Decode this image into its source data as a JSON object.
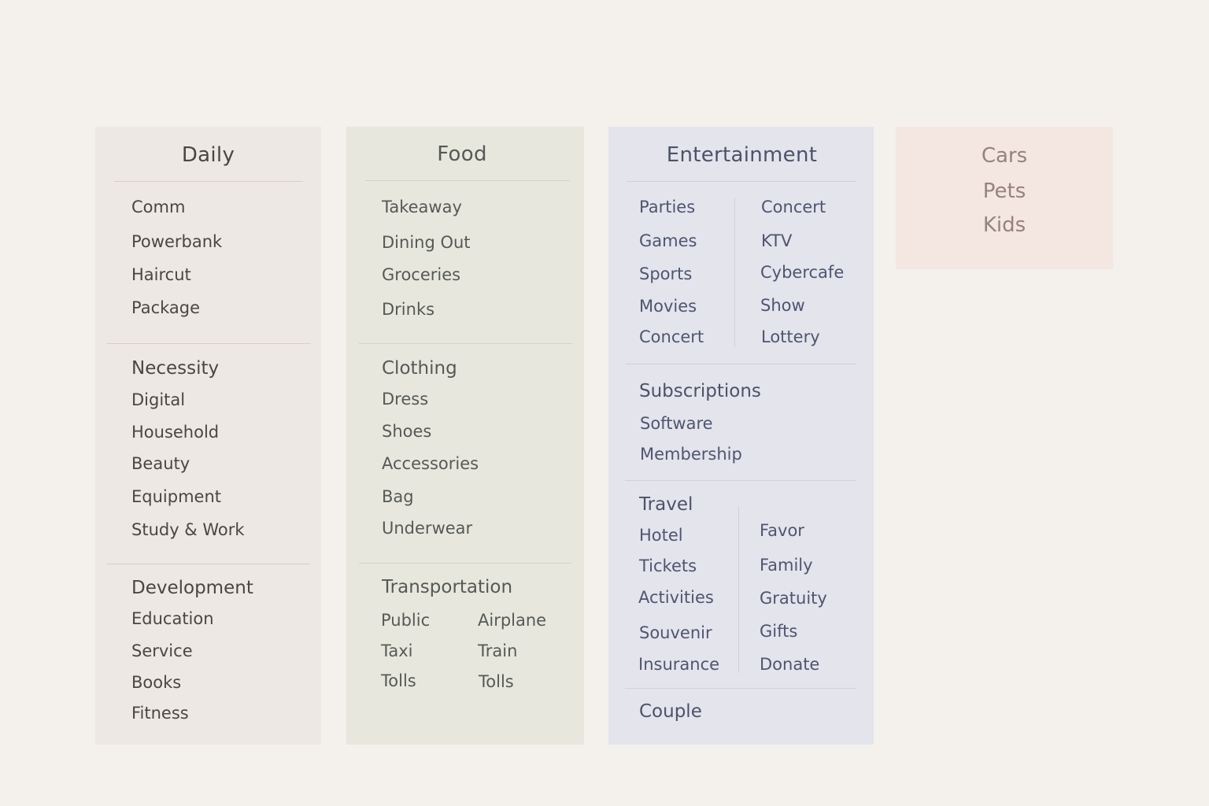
{
  "daily": {
    "title": "Daily",
    "items": [
      "Comm",
      "Powerbank",
      "Haircut",
      "Package"
    ],
    "necessity": {
      "heading": "Necessity",
      "items": [
        "Digital",
        "Household",
        "Beauty",
        "Equipment",
        "Study & Work"
      ]
    },
    "development": {
      "heading": "Development",
      "items": [
        "Education",
        "Service",
        "Books",
        "Fitness"
      ]
    }
  },
  "food": {
    "title": "Food",
    "items": [
      "Takeaway",
      "Dining Out",
      "Groceries",
      "Drinks"
    ],
    "clothing": {
      "heading": "Clothing",
      "items": [
        "Dress",
        "Shoes",
        "Accessories",
        "Bag",
        "Underwear"
      ]
    },
    "transportation": {
      "heading": "Transportation",
      "left": [
        "Public",
        "Taxi",
        "Tolls"
      ],
      "right": [
        "Airplane",
        "Train",
        "Tolls"
      ]
    }
  },
  "entertainment": {
    "title": "Entertainment",
    "left": [
      "Parties",
      "Games",
      "Sports",
      "Movies",
      "Concert"
    ],
    "right": [
      "Concert",
      "KTV",
      "Cybercafe",
      "Show",
      "Lottery"
    ],
    "subscriptions": {
      "heading": "Subscriptions",
      "items": [
        "Software",
        "Membership"
      ]
    },
    "travel": {
      "heading": "Travel",
      "left": [
        "Hotel",
        "Tickets",
        "Activities",
        "Souvenir",
        "Insurance"
      ],
      "right": [
        "Favor",
        "Family",
        "Gratuity",
        "Gifts",
        "Donate"
      ]
    },
    "couple": {
      "heading": "Couple"
    }
  },
  "misc": {
    "items": [
      "Cars",
      "Pets",
      "Kids"
    ]
  }
}
